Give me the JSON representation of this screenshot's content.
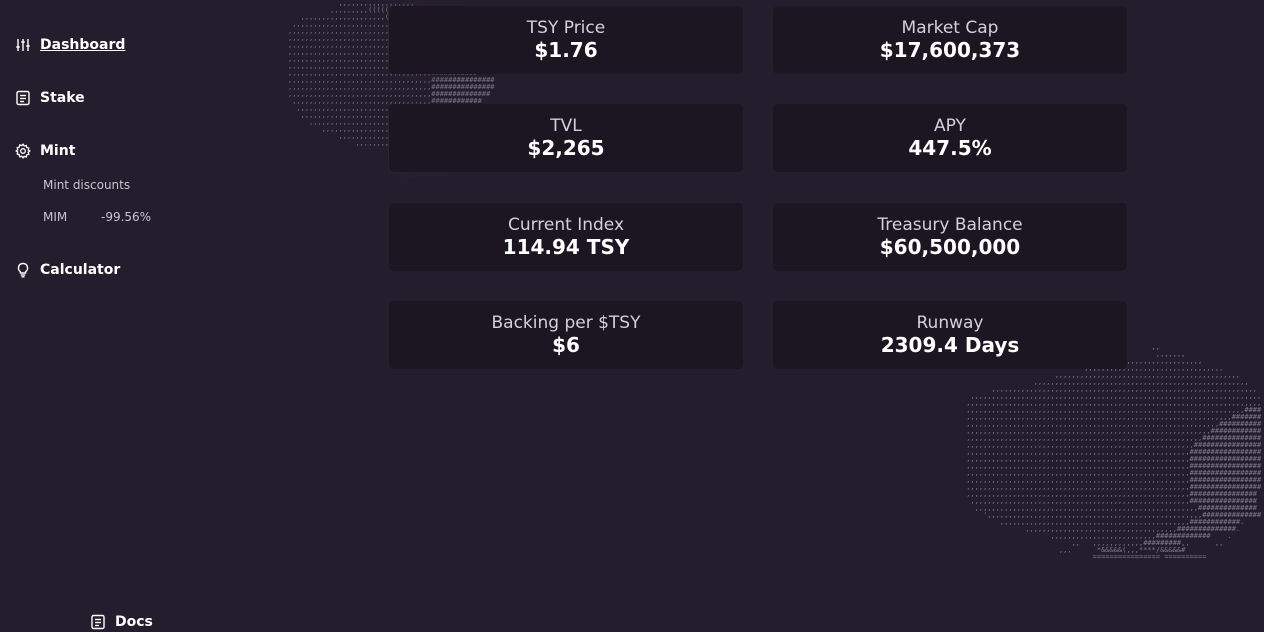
{
  "sidebar": {
    "items": [
      {
        "label": "Dashboard",
        "icon": "sliders-icon"
      },
      {
        "label": "Stake",
        "icon": "document-icon"
      },
      {
        "label": "Mint",
        "icon": "gear-icon"
      },
      {
        "label": "Calculator",
        "icon": "lightbulb-icon"
      }
    ],
    "mint_sub": {
      "discounts_label": "Mint discounts",
      "mim_name": "MIM",
      "mim_value": "-99.56%"
    },
    "docs": {
      "label": "Docs",
      "icon": "document-icon"
    }
  },
  "stats": {
    "tsy_price": {
      "label": "TSY Price",
      "value": "$1.76"
    },
    "market_cap": {
      "label": "Market Cap",
      "value": "$17,600,373"
    },
    "tvl": {
      "label": "TVL",
      "value": "$2,265"
    },
    "apy": {
      "label": "APY",
      "value": "447.5%"
    },
    "current_index": {
      "label": "Current Index",
      "value": "114.94 TSY"
    },
    "treasury_balance": {
      "label": "Treasury Balance",
      "value": "$60,500,000"
    },
    "backing": {
      "label": "Backing per $TSY",
      "value": "$6"
    },
    "runway": {
      "label": "Runway",
      "value": "2309.4 Days"
    }
  },
  "colors": {
    "background": "#241d2d",
    "card": "#1c1623",
    "text": "#ffffff",
    "muted": "#c8c3cf"
  }
}
